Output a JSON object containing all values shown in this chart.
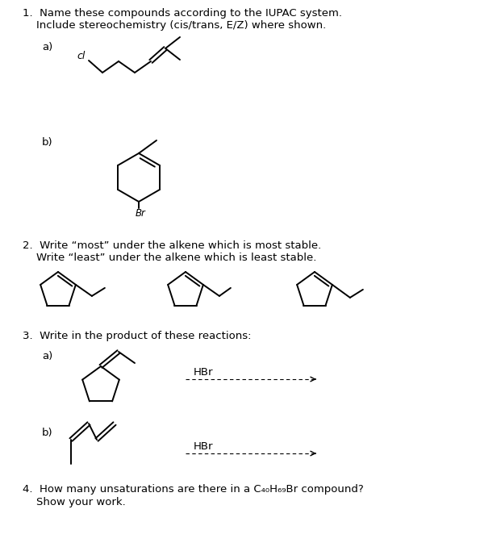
{
  "bg_color": "#ffffff",
  "text_color": "#000000",
  "line_color": "#000000",
  "lw": 1.4,
  "font_size": 9.5,
  "q1": "1.  Name these compounds according to the IUPAC system.\n    Include stereochemistry (cis/trans, E/Z) where shown.",
  "q2l1": "2.  Write “most” under the alkene which is most stable.",
  "q2l2": "    Write “least” under the alkene which is least stable.",
  "q3": "3.  Write in the product of these reactions:",
  "q4l1": "4.  How many unsaturations are there in a C₄₀H₆₉Br compound?",
  "q4l2": "    Show your work.",
  "la": "a)",
  "lb": "b)",
  "hbr": "HBr"
}
